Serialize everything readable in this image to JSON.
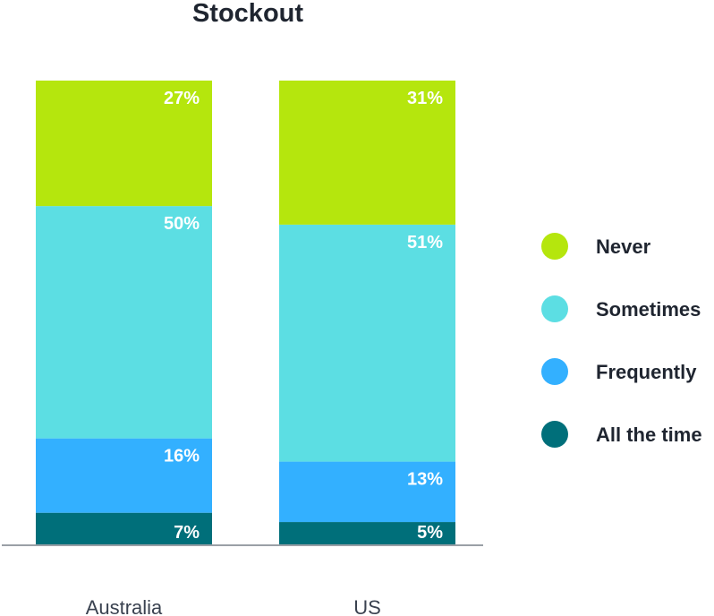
{
  "chart_data": {
    "type": "bar",
    "stacked": true,
    "title": "Stockout",
    "categories": [
      "Australia",
      "US"
    ],
    "series": [
      {
        "name": "All the time",
        "color": "#006F7A",
        "values": [
          7,
          5
        ]
      },
      {
        "name": "Frequently",
        "color": "#33B0FF",
        "values": [
          16,
          13
        ]
      },
      {
        "name": "Sometimes",
        "color": "#5CDEE3",
        "values": [
          50,
          51
        ]
      },
      {
        "name": "Never",
        "color": "#B5E60D",
        "values": [
          27,
          31
        ]
      }
    ],
    "value_suffix": "%",
    "legend_order": [
      "Never",
      "Sometimes",
      "Frequently",
      "All the time"
    ],
    "legend_position": "right",
    "grid": false
  }
}
